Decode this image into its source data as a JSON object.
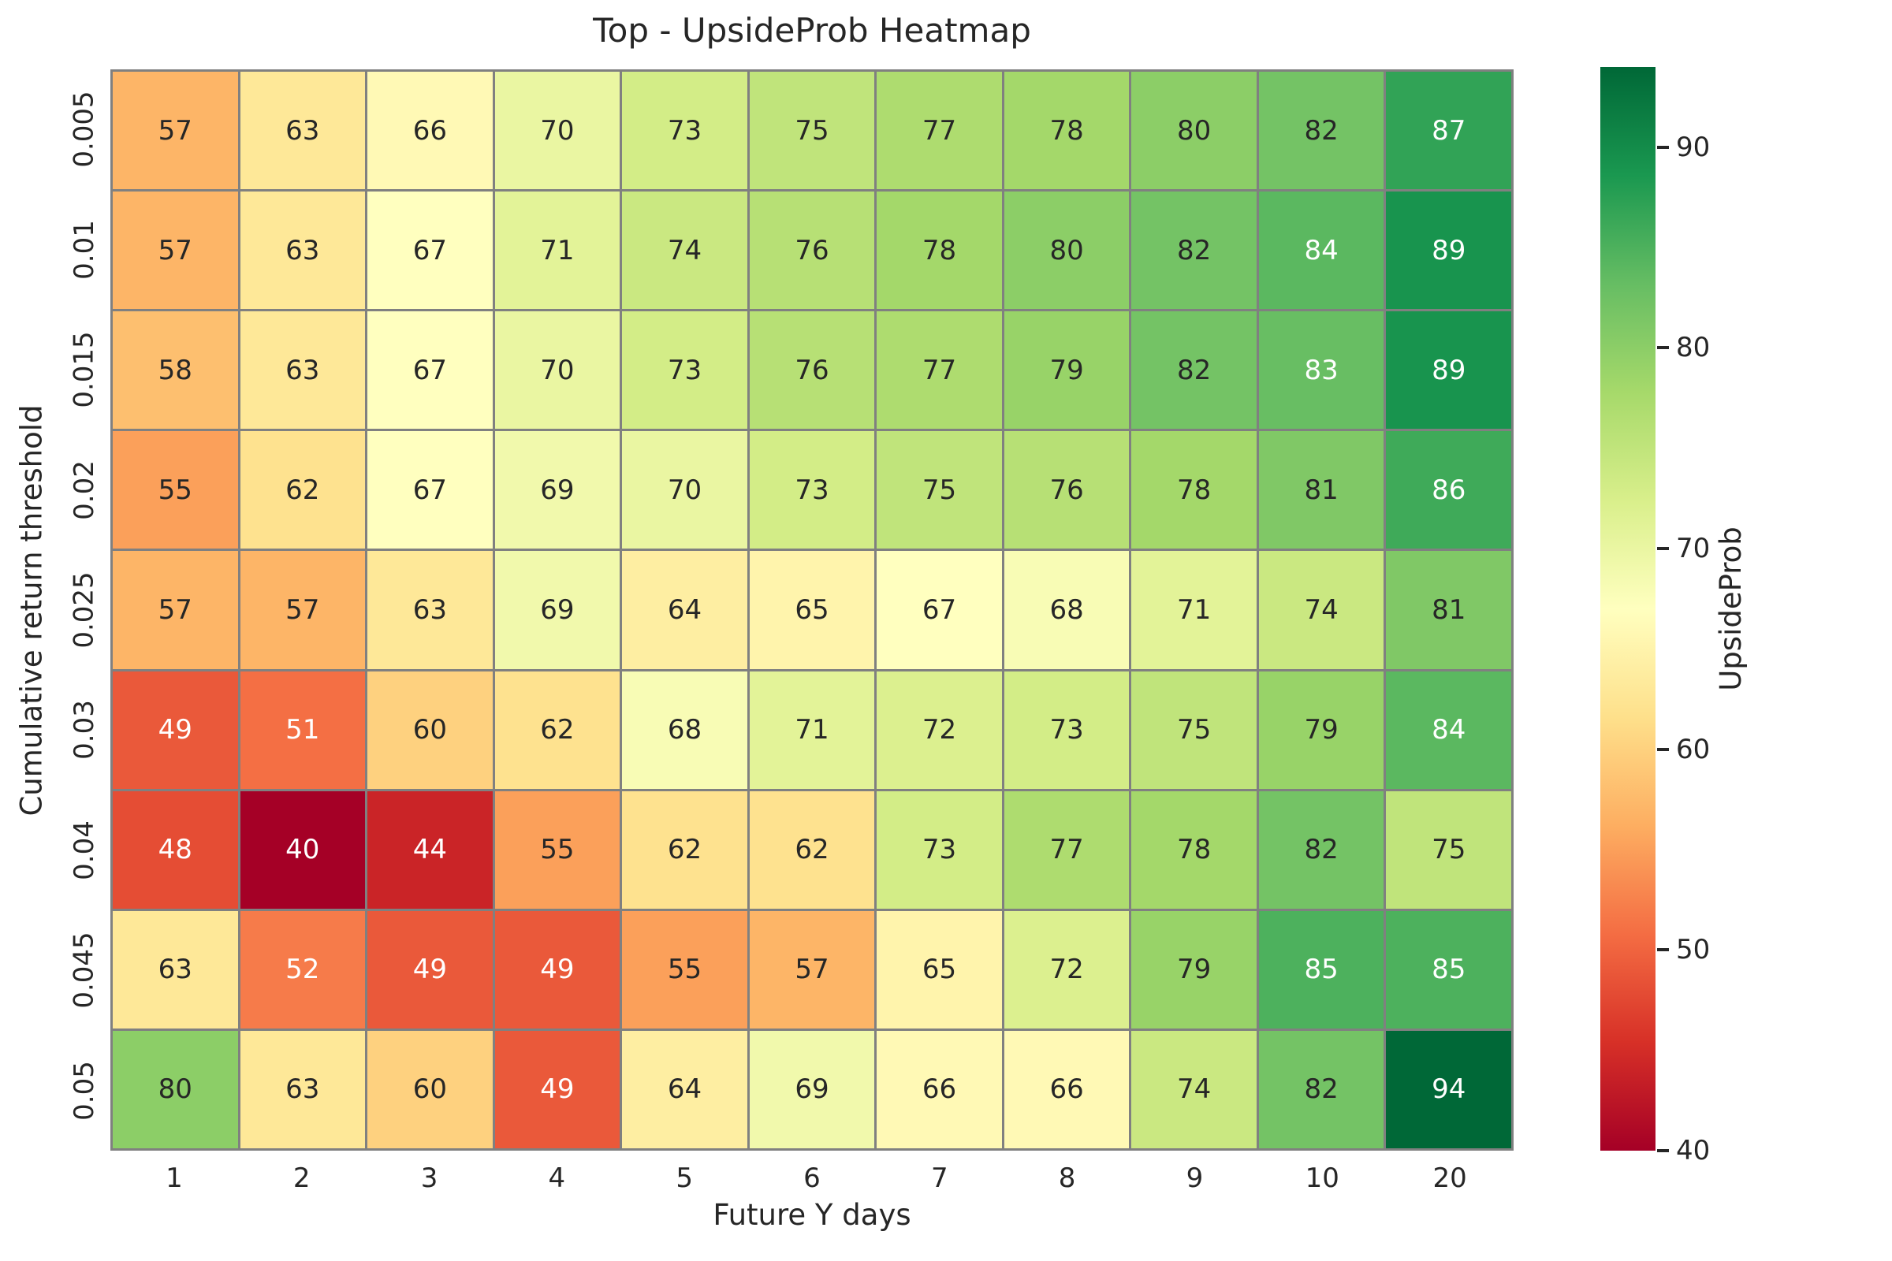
{
  "chart_data": {
    "type": "heatmap",
    "title": "Top - UpsideProb Heatmap",
    "xlabel": "Future Y days",
    "ylabel": "Cumulative return threshold",
    "x_categories": [
      "1",
      "2",
      "3",
      "4",
      "5",
      "6",
      "7",
      "8",
      "9",
      "10",
      "20"
    ],
    "y_categories": [
      "0.005",
      "0.01",
      "0.015",
      "0.02",
      "0.025",
      "0.03",
      "0.04",
      "0.045",
      "0.05"
    ],
    "values": [
      [
        57,
        63,
        66,
        70,
        73,
        75,
        77,
        78,
        80,
        82,
        87
      ],
      [
        57,
        63,
        67,
        71,
        74,
        76,
        78,
        80,
        82,
        84,
        89
      ],
      [
        58,
        63,
        67,
        70,
        73,
        76,
        77,
        79,
        82,
        83,
        89
      ],
      [
        55,
        62,
        67,
        69,
        70,
        73,
        75,
        76,
        78,
        81,
        86
      ],
      [
        57,
        57,
        63,
        69,
        64,
        65,
        67,
        68,
        71,
        74,
        81
      ],
      [
        49,
        51,
        60,
        62,
        68,
        71,
        72,
        73,
        75,
        79,
        84
      ],
      [
        48,
        40,
        44,
        55,
        62,
        62,
        73,
        77,
        78,
        82,
        75
      ],
      [
        63,
        52,
        49,
        49,
        55,
        57,
        65,
        72,
        79,
        85,
        85
      ],
      [
        80,
        63,
        60,
        49,
        64,
        69,
        66,
        66,
        74,
        82,
        94
      ]
    ],
    "colorbar": {
      "label": "UpsideProb",
      "tick_values": [
        90,
        80,
        70,
        60,
        50,
        40
      ],
      "vmin": 40,
      "vmax": 94
    },
    "colormap": {
      "name": "RdYlGn",
      "anchors": [
        "#a50026",
        "#d73027",
        "#f46d43",
        "#fdae61",
        "#fee08b",
        "#ffffbf",
        "#d9ef8b",
        "#a6d96a",
        "#66bd63",
        "#1a9850",
        "#006837"
      ]
    },
    "grid_on": true,
    "legend_position": "right-colorbar",
    "annotation_color_dark": "#262626",
    "annotation_color_light": "#ffffff",
    "grid_line_color": "#808080"
  }
}
